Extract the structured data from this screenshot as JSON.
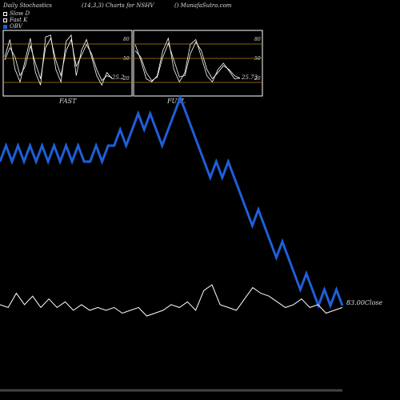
{
  "header": {
    "left": "Daily Stochastics",
    "middle": "(14,3,3) Charts for NSHV",
    "right": "() MunafaSutra.com"
  },
  "legend": [
    {
      "label": "Slow  D",
      "color": "#ffffff",
      "style": "outline"
    },
    {
      "label": "Fast K",
      "color": "#ffffff",
      "style": "outline"
    },
    {
      "label": "OBV",
      "color": "#1f5fd9",
      "style": "filled"
    }
  ],
  "panels": {
    "fast": {
      "label": "FAST",
      "value_label": "25.2",
      "ticks": [
        "80",
        "50",
        "20"
      ]
    },
    "full": {
      "label": "FULL",
      "value_label": "25.73",
      "ticks": [
        "80",
        "50",
        "20"
      ]
    }
  },
  "close_label": "83.00Close",
  "colors": {
    "obv": "#1f5fd9",
    "price": "#ffffff",
    "band": "#b8860b",
    "background": "#000000"
  },
  "chart_data": [
    {
      "type": "line",
      "title": "FAST",
      "ylim": [
        0,
        100
      ],
      "reference_lines": [
        80,
        50,
        20
      ],
      "last_value": 25.2,
      "series": [
        {
          "name": "Fast K",
          "values": [
            60,
            88,
            40,
            20,
            55,
            90,
            35,
            15,
            92,
            95,
            40,
            20,
            85,
            95,
            30,
            70,
            88,
            60,
            30,
            15,
            35,
            25
          ]
        },
        {
          "name": "Slow D",
          "values": [
            55,
            75,
            60,
            30,
            45,
            78,
            50,
            25,
            75,
            90,
            55,
            30,
            70,
            88,
            45,
            62,
            80,
            65,
            40,
            22,
            30,
            27
          ]
        }
      ]
    },
    {
      "type": "line",
      "title": "FULL",
      "ylim": [
        0,
        100
      ],
      "reference_lines": [
        80,
        50,
        20
      ],
      "last_value": 25.73,
      "series": [
        {
          "name": "Fast K",
          "values": [
            80,
            55,
            25,
            20,
            30,
            70,
            90,
            40,
            20,
            35,
            80,
            88,
            60,
            30,
            20,
            40,
            50,
            38,
            25,
            26
          ]
        },
        {
          "name": "Slow D",
          "values": [
            70,
            60,
            35,
            22,
            28,
            60,
            82,
            55,
            28,
            30,
            65,
            84,
            70,
            40,
            25,
            35,
            46,
            40,
            30,
            26
          ]
        }
      ]
    },
    {
      "type": "line",
      "title": "",
      "series": [
        {
          "name": "OBV",
          "values": [
            2,
            3,
            2,
            3,
            2,
            3,
            2,
            3,
            2,
            3,
            2,
            3,
            2,
            3,
            2,
            2,
            3,
            2,
            3,
            3,
            4,
            3,
            4,
            5,
            4,
            5,
            4,
            3,
            4,
            5,
            6,
            5,
            4,
            3,
            2,
            1,
            2,
            1,
            2,
            1,
            0,
            -1,
            -2,
            -1,
            -2,
            -3,
            -4,
            -3,
            -4,
            -5,
            -6,
            -5,
            -6,
            -7,
            -6,
            -7,
            -6,
            -7
          ]
        },
        {
          "name": "Price",
          "values": [
            45,
            44,
            49,
            45,
            48,
            44,
            47,
            44,
            46,
            43,
            45,
            43,
            44,
            43,
            44,
            42,
            43,
            44,
            41,
            42,
            43,
            45,
            44,
            46,
            43,
            50,
            52,
            45,
            44,
            43,
            47,
            51,
            49,
            48,
            46,
            44,
            45,
            47,
            44,
            45,
            42,
            43,
            44
          ]
        }
      ]
    }
  ]
}
